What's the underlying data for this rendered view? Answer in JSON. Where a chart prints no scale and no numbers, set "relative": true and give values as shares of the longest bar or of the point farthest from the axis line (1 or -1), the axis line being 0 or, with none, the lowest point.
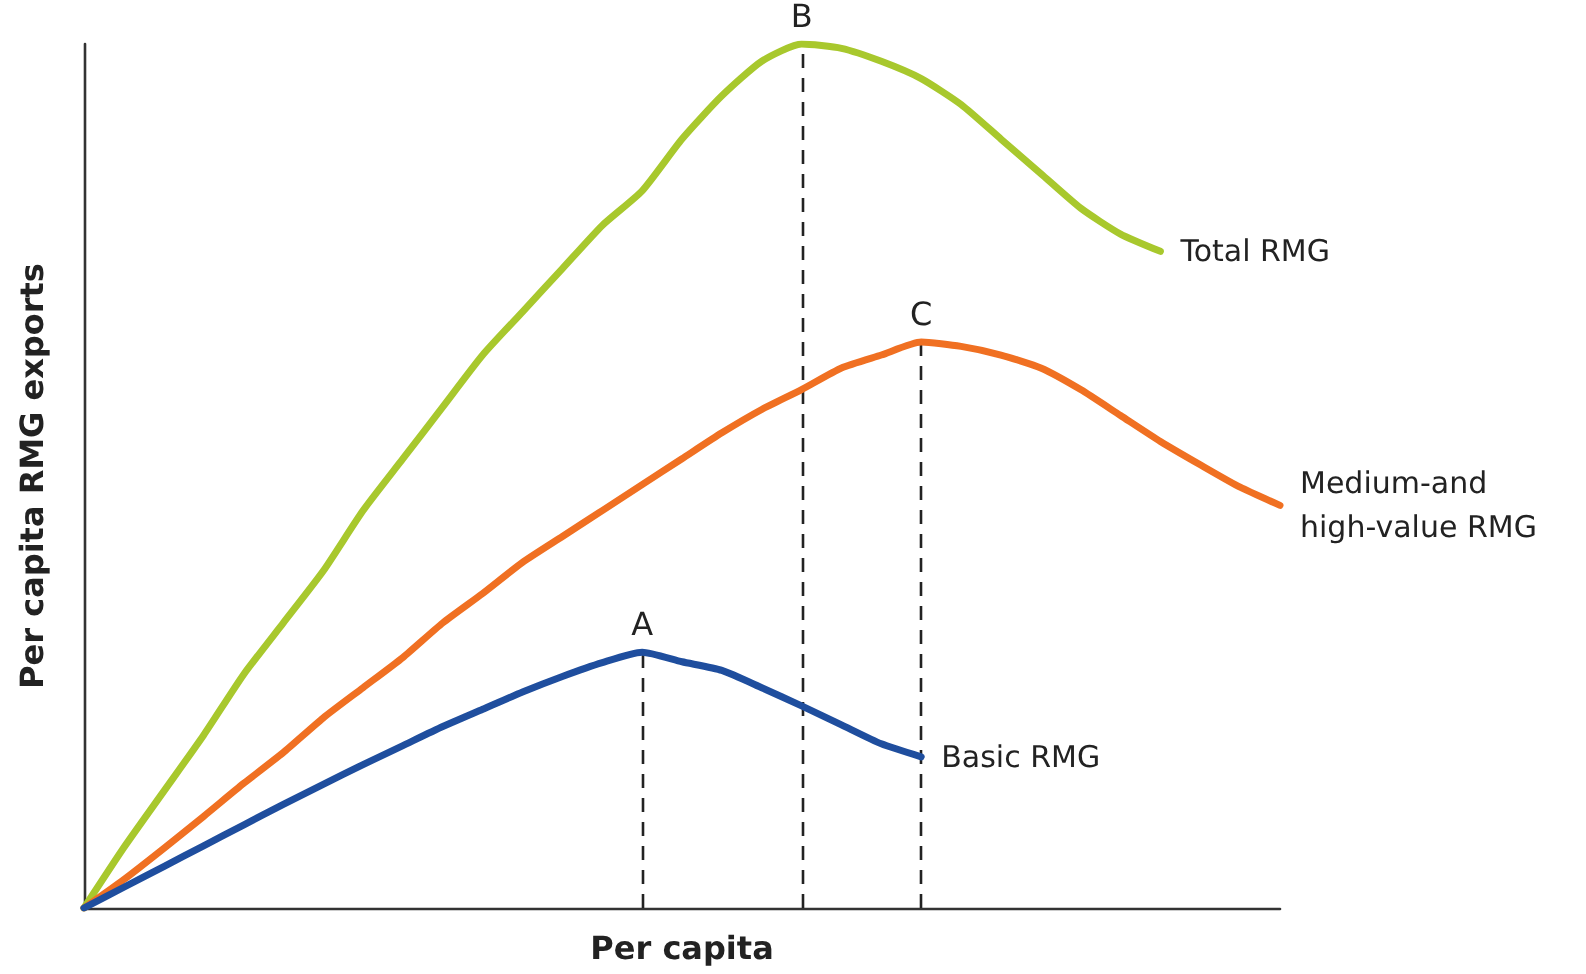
{
  "chart_data": {
    "type": "line",
    "relative": true,
    "xlabel": "Per capita",
    "ylabel": "Per capita RMG exports",
    "categories": [
      null,
      null,
      null,
      null,
      null,
      null,
      null,
      null,
      null,
      null,
      null,
      null,
      null,
      null,
      null,
      null,
      null,
      null,
      null,
      null,
      null,
      null,
      null,
      null,
      null,
      null,
      null,
      null,
      null,
      null,
      null
    ],
    "series": [
      {
        "name": "Total RMG",
        "color": "#a8c82d",
        "values": [
          0,
          0.07,
          0.135,
          0.2,
          0.27,
          0.33,
          0.39,
          0.46,
          0.52,
          0.58,
          0.64,
          0.69,
          0.74,
          0.79,
          0.83,
          0.89,
          0.94,
          0.98,
          1,
          0.995,
          0.98,
          0.96,
          0.93,
          0.89,
          0.85,
          0.81,
          0.78,
          0.76,
          null,
          null,
          null
        ]
      },
      {
        "name": "Medium-and high-value RMG",
        "color": "#f07022",
        "values": [
          0,
          0.033,
          0.069,
          0.106,
          0.144,
          0.18,
          0.22,
          0.255,
          0.29,
          0.33,
          0.364,
          0.4,
          0.43,
          0.46,
          0.49,
          0.52,
          0.55,
          0.577,
          0.6,
          0.625,
          0.64,
          0.655,
          0.65,
          0.64,
          0.625,
          0.6,
          0.57,
          0.54,
          0.513,
          0.487,
          0.466
        ]
      },
      {
        "name": "Basic RMG",
        "color": "#1f4e9e",
        "values": [
          0,
          0.024,
          0.048,
          0.072,
          0.096,
          0.12,
          0.143,
          0.166,
          0.188,
          0.21,
          0.23,
          0.25,
          0.268,
          0.284,
          0.296,
          0.285,
          0.275,
          0.255,
          0.234,
          0.212,
          0.19,
          0.175,
          null,
          null,
          null,
          null,
          null,
          null,
          null,
          null,
          null
        ]
      }
    ],
    "annotations": [
      {
        "text": "A",
        "y": 0.296
      },
      {
        "text": "B",
        "y": 1
      },
      {
        "text": "C",
        "y": 0.655
      }
    ],
    "grid": false,
    "legend": false,
    "marker": "none",
    "line_style": "solid",
    "tick_labels": false
  }
}
